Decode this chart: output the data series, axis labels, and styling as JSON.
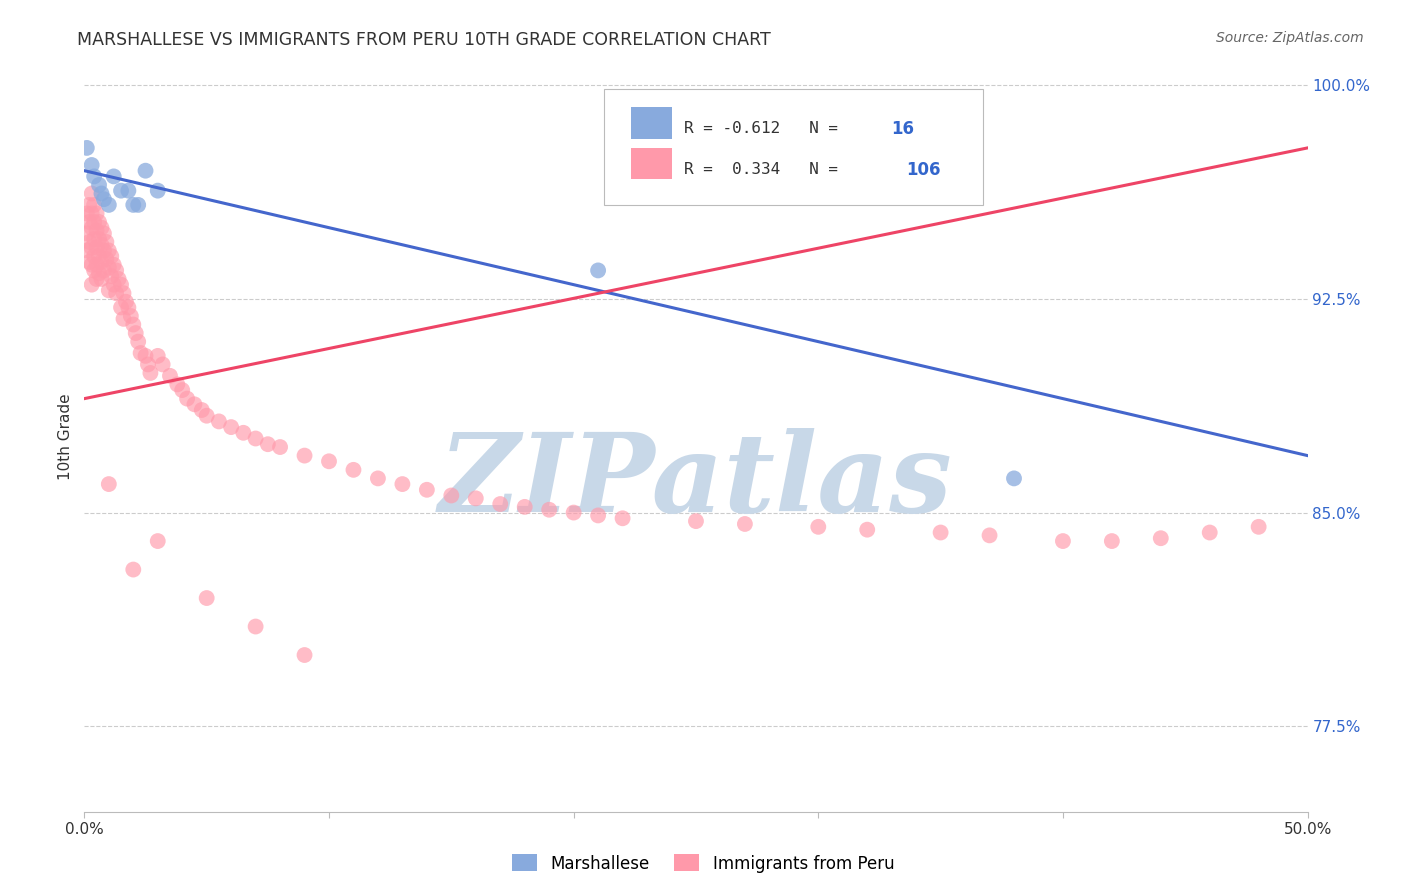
{
  "title": "MARSHALLESE VS IMMIGRANTS FROM PERU 10TH GRADE CORRELATION CHART",
  "source": "Source: ZipAtlas.com",
  "ylabel": "10th Grade",
  "xlim": [
    0.0,
    0.5
  ],
  "ylim": [
    0.745,
    1.008
  ],
  "ytick_vals": [
    0.775,
    0.85,
    0.925,
    1.0
  ],
  "ytick_labels": [
    "77.5%",
    "85.0%",
    "92.5%",
    "100.0%"
  ],
  "xtick_vals": [
    0.0,
    0.1,
    0.2,
    0.3,
    0.4,
    0.5
  ],
  "xtick_labels": [
    "0.0%",
    "",
    "",
    "",
    "",
    "50.0%"
  ],
  "blue_color": "#88AADD",
  "pink_color": "#FF99AA",
  "blue_line_color": "#4466CC",
  "pink_line_color": "#EE4466",
  "R_blue": -0.612,
  "N_blue": 16,
  "R_pink": 0.334,
  "N_pink": 106,
  "legend_N_color": "#3366CC",
  "watermark": "ZIPatlas",
  "watermark_color": "#C8D8E8",
  "blue_x": [
    0.001,
    0.003,
    0.004,
    0.006,
    0.007,
    0.008,
    0.01,
    0.012,
    0.015,
    0.018,
    0.02,
    0.022,
    0.025,
    0.03,
    0.21,
    0.38
  ],
  "blue_y": [
    0.978,
    0.972,
    0.968,
    0.965,
    0.962,
    0.96,
    0.958,
    0.968,
    0.963,
    0.963,
    0.958,
    0.958,
    0.97,
    0.963,
    0.935,
    0.862
  ],
  "pink_x": [
    0.001,
    0.001,
    0.001,
    0.002,
    0.002,
    0.002,
    0.002,
    0.003,
    0.003,
    0.003,
    0.003,
    0.003,
    0.003,
    0.004,
    0.004,
    0.004,
    0.004,
    0.004,
    0.005,
    0.005,
    0.005,
    0.005,
    0.005,
    0.006,
    0.006,
    0.006,
    0.006,
    0.007,
    0.007,
    0.007,
    0.007,
    0.008,
    0.008,
    0.008,
    0.009,
    0.009,
    0.01,
    0.01,
    0.01,
    0.011,
    0.011,
    0.012,
    0.012,
    0.013,
    0.013,
    0.014,
    0.015,
    0.015,
    0.016,
    0.016,
    0.017,
    0.018,
    0.019,
    0.02,
    0.021,
    0.022,
    0.023,
    0.025,
    0.026,
    0.027,
    0.03,
    0.032,
    0.035,
    0.038,
    0.04,
    0.042,
    0.045,
    0.048,
    0.05,
    0.055,
    0.06,
    0.065,
    0.07,
    0.075,
    0.08,
    0.09,
    0.1,
    0.11,
    0.12,
    0.13,
    0.14,
    0.15,
    0.16,
    0.17,
    0.18,
    0.19,
    0.2,
    0.21,
    0.22,
    0.25,
    0.27,
    0.3,
    0.32,
    0.35,
    0.37,
    0.4,
    0.42,
    0.44,
    0.46,
    0.48,
    0.01,
    0.02,
    0.03,
    0.05,
    0.07,
    0.09
  ],
  "pink_y": [
    0.955,
    0.948,
    0.942,
    0.958,
    0.952,
    0.945,
    0.938,
    0.962,
    0.955,
    0.95,
    0.943,
    0.937,
    0.93,
    0.958,
    0.952,
    0.946,
    0.94,
    0.935,
    0.955,
    0.949,
    0.943,
    0.937,
    0.932,
    0.952,
    0.946,
    0.94,
    0.934,
    0.95,
    0.944,
    0.938,
    0.932,
    0.948,
    0.942,
    0.935,
    0.945,
    0.939,
    0.942,
    0.936,
    0.928,
    0.94,
    0.933,
    0.937,
    0.93,
    0.935,
    0.927,
    0.932,
    0.93,
    0.922,
    0.927,
    0.918,
    0.924,
    0.922,
    0.919,
    0.916,
    0.913,
    0.91,
    0.906,
    0.905,
    0.902,
    0.899,
    0.905,
    0.902,
    0.898,
    0.895,
    0.893,
    0.89,
    0.888,
    0.886,
    0.884,
    0.882,
    0.88,
    0.878,
    0.876,
    0.874,
    0.873,
    0.87,
    0.868,
    0.865,
    0.862,
    0.86,
    0.858,
    0.856,
    0.855,
    0.853,
    0.852,
    0.851,
    0.85,
    0.849,
    0.848,
    0.847,
    0.846,
    0.845,
    0.844,
    0.843,
    0.842,
    0.84,
    0.84,
    0.841,
    0.843,
    0.845,
    0.86,
    0.83,
    0.84,
    0.82,
    0.81,
    0.8
  ]
}
